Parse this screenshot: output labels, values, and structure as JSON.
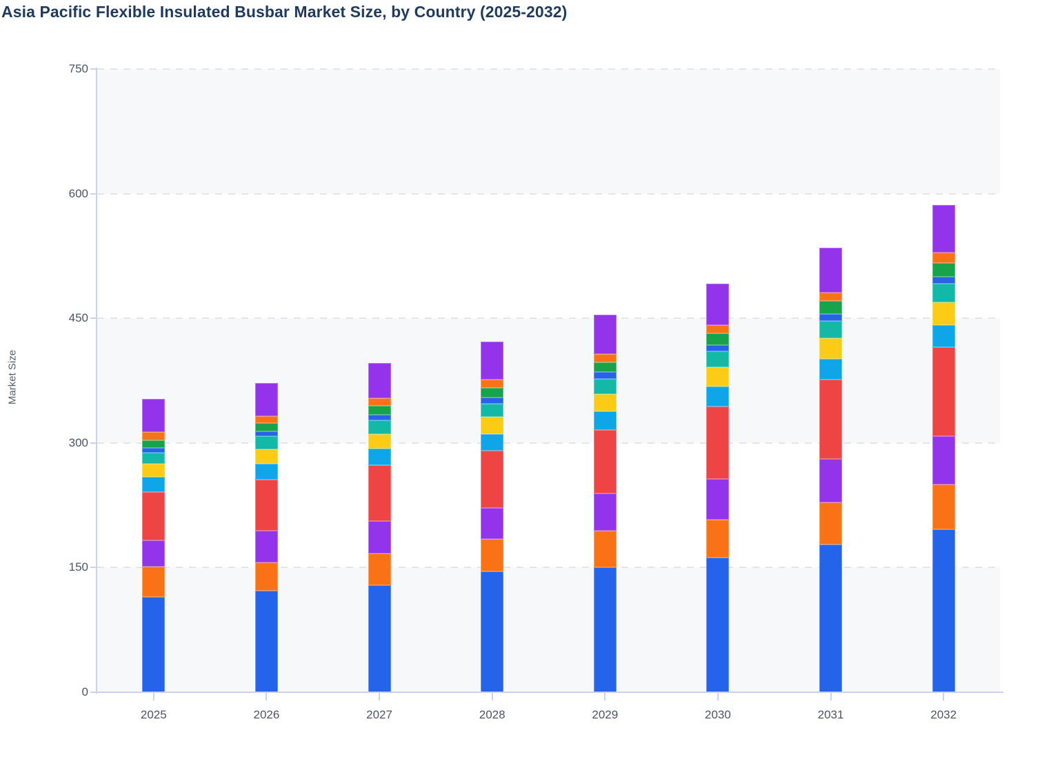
{
  "title": "Asia Pacific Flexible Insulated Busbar Market Size, by Country (2025-2032)",
  "y_axis_label": "Market Size",
  "palette": {
    "title_color": "#1F3A5F",
    "axis_line": "#C9D2F2",
    "gridline": "#E2E5EA",
    "band_shaded": "#F7F8FA",
    "band_plain": "#FFFFFF",
    "tick_label": "#4B5563",
    "axis_title": "#52606D"
  },
  "chart_data": {
    "type": "bar",
    "stacked": true,
    "title": "Asia Pacific Flexible Insulated Busbar Market Size, by Country (2025-2032)",
    "xlabel": "",
    "ylabel": "Market Size",
    "categories": [
      "2025",
      "2026",
      "2027",
      "2028",
      "2029",
      "2030",
      "2031",
      "2032"
    ],
    "ylim": [
      0,
      750
    ],
    "yticks": [
      0,
      150,
      300,
      450,
      600,
      750
    ],
    "grid": "horizontal-dashed",
    "legend": "none visible in image",
    "background_bands": "alternating shaded rows between gridlines (0-150, 300-450, 600-750 shaded)",
    "series": [
      {
        "name": "segment-1-blue",
        "color": "#2563EB",
        "values": [
          115,
          122,
          129,
          145,
          150,
          162,
          178,
          196
        ]
      },
      {
        "name": "segment-2-orange",
        "color": "#F97316",
        "values": [
          36,
          34,
          38,
          39,
          44,
          46,
          50,
          54
        ]
      },
      {
        "name": "segment-3-purple",
        "color": "#9333EA",
        "values": [
          32,
          38,
          39,
          38,
          45,
          49,
          53,
          58
        ]
      },
      {
        "name": "segment-4-red",
        "color": "#EF4444",
        "values": [
          58,
          62,
          67,
          69,
          77,
          87,
          95,
          107
        ]
      },
      {
        "name": "segment-5-sky",
        "color": "#0EA5E9",
        "values": [
          18,
          19,
          20,
          20,
          22,
          24,
          25,
          27
        ]
      },
      {
        "name": "segment-6-yellow",
        "color": "#FACC15",
        "values": [
          16,
          17,
          18,
          20,
          21,
          23,
          25,
          27
        ]
      },
      {
        "name": "segment-7-teal",
        "color": "#14B8A6",
        "values": [
          13,
          16,
          16,
          16,
          18,
          19,
          21,
          23
        ]
      },
      {
        "name": "segment-8-blue",
        "color": "#2563EB",
        "values": [
          6,
          6,
          7,
          8,
          8,
          8,
          8,
          8
        ]
      },
      {
        "name": "segment-9-green",
        "color": "#16A34A",
        "values": [
          9,
          10,
          11,
          11,
          12,
          14,
          16,
          17
        ]
      },
      {
        "name": "segment-10-orange",
        "color": "#F97316",
        "values": [
          10,
          8,
          9,
          10,
          10,
          10,
          10,
          12
        ]
      },
      {
        "name": "segment-11-purple",
        "color": "#9333EA",
        "values": [
          40,
          40,
          42,
          46,
          47,
          50,
          54,
          57
        ]
      }
    ],
    "totals": [
      353,
      372,
      396,
      422,
      454,
      492,
      535,
      586
    ]
  }
}
